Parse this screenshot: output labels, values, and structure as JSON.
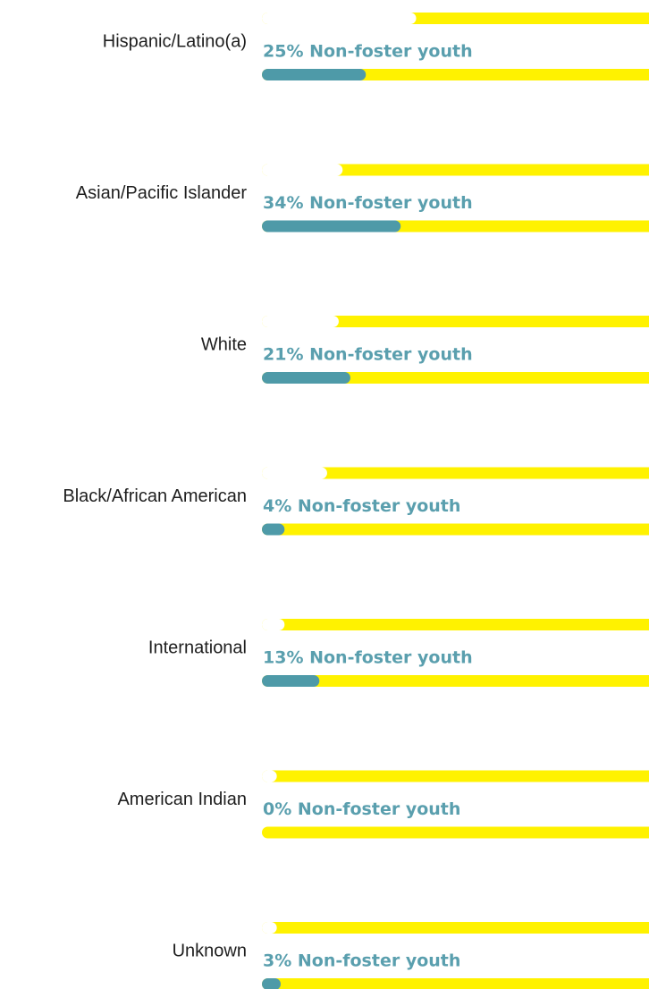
{
  "chart_data": {
    "type": "bar",
    "categories": [
      "Hispanic/Latino(a)",
      "Asian/Pacific Islander",
      "White",
      "Black/African American",
      "International",
      "American Indian",
      "Unknown"
    ],
    "series": [
      {
        "color": "#ffffff",
        "values": [
          38,
          19,
          18,
          15,
          4,
          2,
          2
        ]
      },
      {
        "color": "#4e9aa8",
        "values": [
          25,
          34,
          21,
          4,
          13,
          0,
          3
        ],
        "value_labels": [
          "25% Non-foster youth",
          "34% Non-foster youth",
          "21% Non-foster youth",
          "4% Non-foster youth",
          "13% Non-foster youth",
          "0% Non-foster youth",
          "3% Non-foster youth"
        ]
      }
    ],
    "track_color": "#fff200",
    "xlim": [
      0,
      100
    ]
  }
}
